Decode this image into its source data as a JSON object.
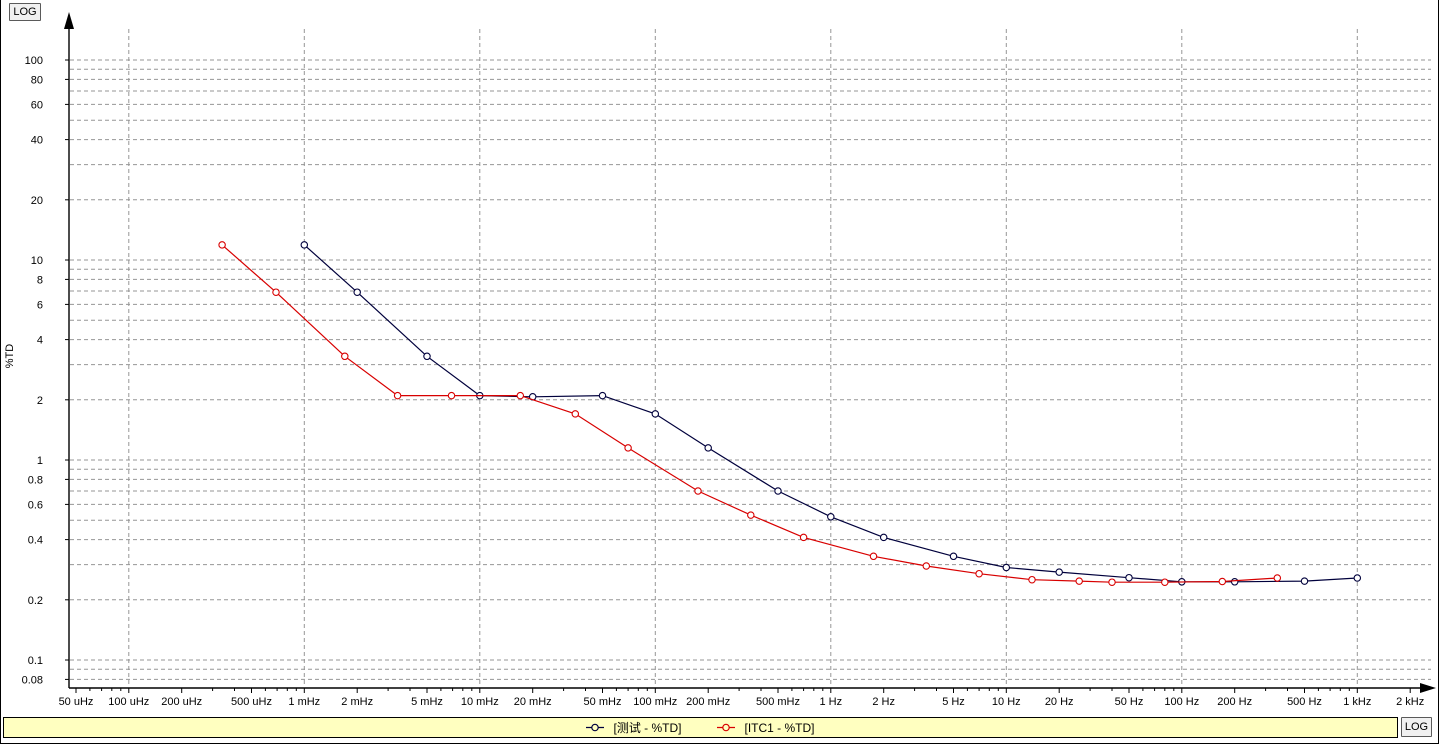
{
  "window": {
    "top_log_button": "LOG",
    "bottom_log_button": "LOG"
  },
  "chart_data": {
    "type": "line",
    "title": "",
    "x_axis": {
      "label": "",
      "unit": "Hz",
      "scale": "log",
      "min": 5e-05,
      "max": 2000,
      "ticks": [
        {
          "f": 5e-05,
          "label": "50 uHz"
        },
        {
          "f": 0.0001,
          "label": "100 uHz"
        },
        {
          "f": 0.0002,
          "label": "200 uHz"
        },
        {
          "f": 0.0005,
          "label": "500 uHz"
        },
        {
          "f": 0.001,
          "label": "1 mHz"
        },
        {
          "f": 0.002,
          "label": "2 mHz"
        },
        {
          "f": 0.005,
          "label": "5 mHz"
        },
        {
          "f": 0.01,
          "label": "10 mHz"
        },
        {
          "f": 0.02,
          "label": "20 mHz"
        },
        {
          "f": 0.05,
          "label": "50 mHz"
        },
        {
          "f": 0.1,
          "label": "100 mHz"
        },
        {
          "f": 0.2,
          "label": "200 mHz"
        },
        {
          "f": 0.5,
          "label": "500 mHz"
        },
        {
          "f": 1,
          "label": "1 Hz"
        },
        {
          "f": 2,
          "label": "2 Hz"
        },
        {
          "f": 5,
          "label": "5 Hz"
        },
        {
          "f": 10,
          "label": "10 Hz"
        },
        {
          "f": 20,
          "label": "20 Hz"
        },
        {
          "f": 50,
          "label": "50 Hz"
        },
        {
          "f": 100,
          "label": "100 Hz"
        },
        {
          "f": 200,
          "label": "200 Hz"
        },
        {
          "f": 500,
          "label": "500 Hz"
        },
        {
          "f": 1000,
          "label": "1 kHz"
        },
        {
          "f": 2000,
          "label": "2 kHz"
        }
      ]
    },
    "y_axis": {
      "label": "%TD",
      "scale": "log",
      "min": 0.075,
      "max": 130,
      "ticks": [
        {
          "v": 100,
          "label": "100"
        },
        {
          "v": 80,
          "label": "80"
        },
        {
          "v": 60,
          "label": "60"
        },
        {
          "v": 40,
          "label": "40"
        },
        {
          "v": 20,
          "label": "20"
        },
        {
          "v": 10,
          "label": "10"
        },
        {
          "v": 8,
          "label": "8"
        },
        {
          "v": 6,
          "label": "6"
        },
        {
          "v": 4,
          "label": "4"
        },
        {
          "v": 2,
          "label": "2"
        },
        {
          "v": 1,
          "label": "1"
        },
        {
          "v": 0.8,
          "label": "0.8"
        },
        {
          "v": 0.6,
          "label": "0.6"
        },
        {
          "v": 0.4,
          "label": "0.4"
        },
        {
          "v": 0.2,
          "label": "0.2"
        },
        {
          "v": 0.1,
          "label": "0.1"
        },
        {
          "v": 0.08,
          "label": "0.08"
        }
      ]
    },
    "grid": {
      "show": true,
      "color": "#969696",
      "style": "dashed"
    },
    "legend": {
      "position": "bottom",
      "background": "#ffffc0",
      "border": "#000000"
    },
    "series": [
      {
        "name": "[测试 - %TD]",
        "color": "#00003c",
        "marker": "open-circle",
        "points": [
          [
            0.001,
            11.9
          ],
          [
            0.002,
            6.9
          ],
          [
            0.005,
            3.3
          ],
          [
            0.01,
            2.1
          ],
          [
            0.02,
            2.07
          ],
          [
            0.05,
            2.1
          ],
          [
            0.1,
            1.7
          ],
          [
            0.2,
            1.15
          ],
          [
            0.5,
            0.7
          ],
          [
            1,
            0.52
          ],
          [
            2,
            0.41
          ],
          [
            5,
            0.33
          ],
          [
            10,
            0.29
          ],
          [
            20,
            0.275
          ],
          [
            50,
            0.258
          ],
          [
            100,
            0.246
          ],
          [
            200,
            0.246
          ],
          [
            500,
            0.248
          ],
          [
            1000,
            0.257
          ]
        ]
      },
      {
        "name": "[ITC1 - %TD]",
        "color": "#d80000",
        "marker": "open-circle",
        "points": [
          [
            0.00034,
            11.9
          ],
          [
            0.00069,
            6.9
          ],
          [
            0.0017,
            3.3
          ],
          [
            0.0034,
            2.1
          ],
          [
            0.0069,
            2.1
          ],
          [
            0.017,
            2.1
          ],
          [
            0.035,
            1.7
          ],
          [
            0.07,
            1.15
          ],
          [
            0.175,
            0.7
          ],
          [
            0.35,
            0.53
          ],
          [
            0.7,
            0.41
          ],
          [
            1.75,
            0.33
          ],
          [
            3.5,
            0.295
          ],
          [
            7,
            0.27
          ],
          [
            14,
            0.252
          ],
          [
            26,
            0.248
          ],
          [
            40,
            0.245
          ],
          [
            80,
            0.245
          ],
          [
            170,
            0.247
          ],
          [
            350,
            0.257
          ]
        ]
      }
    ]
  }
}
